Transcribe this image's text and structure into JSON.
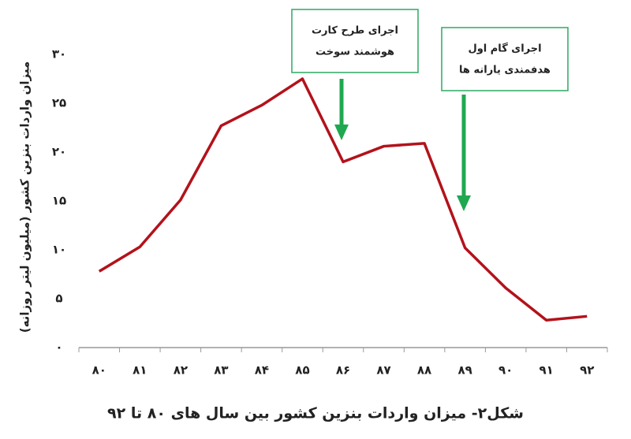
{
  "chart_data": {
    "type": "line",
    "y_label": "میزان واردات بنزین کشور (میلیون لیتر روزانه)",
    "caption": "شکل۲- میزان واردات بنزین کشور بین سال های ۸۰ تا ۹۲",
    "categories": [
      "۸۰",
      "۸۱",
      "۸۲",
      "۸۳",
      "۸۴",
      "۸۵",
      "۸۶",
      "۸۷",
      "۸۸",
      "۸۹",
      "۹۰",
      "۹۱",
      "۹۲"
    ],
    "series": [
      {
        "color": "#b3121b",
        "values": [
          7.8,
          10.3,
          15.1,
          22.7,
          24.8,
          27.5,
          19.0,
          20.6,
          20.9,
          10.2,
          6.1,
          2.8,
          3.2
        ]
      }
    ],
    "ylim": [
      0,
      30
    ],
    "yticks": [
      {
        "value": 0,
        "label": "۰"
      },
      {
        "value": 5,
        "label": "۵"
      },
      {
        "value": 10,
        "label": "۱۰"
      },
      {
        "value": 15,
        "label": "۱۵"
      },
      {
        "value": 20,
        "label": "۲۰"
      },
      {
        "value": 25,
        "label": "۲۵"
      },
      {
        "value": 30,
        "label": "۳۰"
      }
    ],
    "annotations": [
      {
        "lines": [
          "اجرای طرح کارت",
          "هوشمند سوخت"
        ]
      },
      {
        "lines": [
          "اجرای گام اول",
          "هدفمندی یارانه ها"
        ]
      }
    ]
  }
}
